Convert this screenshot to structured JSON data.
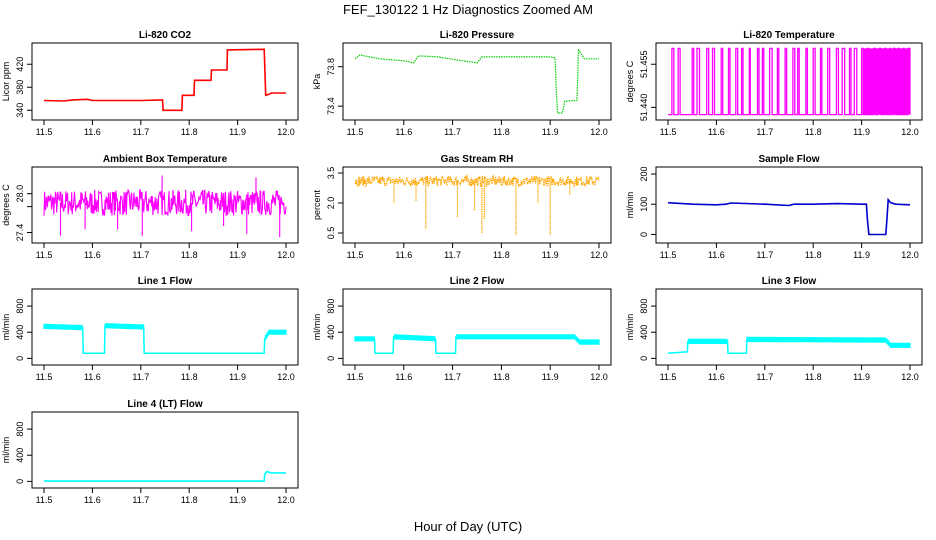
{
  "title": "FEF_130122  1 Hz Diagnostics Zoomed AM",
  "xlabel": "Hour of Day (UTC)",
  "chart_data": [
    {
      "type": "line",
      "title": "Li-820 CO2",
      "ylabel": "Licor ppm",
      "color": "#ff0000",
      "xlim": [
        11.5,
        12.0
      ],
      "ylim": [
        330,
        450
      ],
      "xticks": [
        "11.5",
        "11.6",
        "11.7",
        "11.8",
        "11.9",
        "12.0"
      ],
      "yticks": [
        340,
        380,
        420
      ],
      "ytick_labels": [
        "340",
        "380",
        "420"
      ],
      "style": "line",
      "x": [
        11.5,
        11.54,
        11.56,
        11.59,
        11.6,
        11.7,
        11.745,
        11.746,
        11.785,
        11.786,
        11.81,
        11.811,
        11.845,
        11.846,
        11.878,
        11.879,
        11.955,
        11.958,
        11.965,
        11.97,
        12.0
      ],
      "y": [
        357,
        356,
        358,
        359,
        357,
        357,
        358,
        340,
        340,
        366,
        366,
        392,
        392,
        410,
        410,
        445,
        446,
        366,
        368,
        370,
        370
      ]
    },
    {
      "type": "line",
      "title": "Li-820 Pressure",
      "ylabel": "kPa",
      "color": "#00cc00",
      "xlim": [
        11.5,
        12.0
      ],
      "ylim": [
        73.3,
        74.0
      ],
      "xticks": [
        "11.5",
        "11.6",
        "11.7",
        "11.8",
        "11.9",
        "12.0"
      ],
      "yticks": [
        73.4,
        73.8
      ],
      "ytick_labels": [
        "73.4",
        "73.8"
      ],
      "style": "dots",
      "x": [
        11.5,
        11.51,
        11.55,
        11.6,
        11.62,
        11.63,
        11.67,
        11.72,
        11.75,
        11.76,
        11.8,
        11.85,
        11.9,
        11.91,
        11.912,
        11.915,
        11.925,
        11.93,
        11.955,
        11.958,
        11.962,
        11.97,
        12.0
      ],
      "y": [
        73.88,
        73.92,
        73.88,
        73.86,
        73.84,
        73.91,
        73.9,
        73.86,
        73.84,
        73.9,
        73.9,
        73.9,
        73.9,
        73.89,
        73.6,
        73.33,
        73.33,
        73.45,
        73.46,
        73.98,
        73.94,
        73.88,
        73.88
      ]
    },
    {
      "type": "line",
      "title": "Li-820 Temperature",
      "ylabel": "degrees C",
      "color": "#ff00ff",
      "xlim": [
        11.5,
        12.0
      ],
      "ylim": [
        51.437,
        51.461
      ],
      "xticks": [
        "11.5",
        "11.6",
        "11.7",
        "11.8",
        "11.9",
        "12.0"
      ],
      "yticks": [
        51.44,
        51.455
      ],
      "ytick_labels": [
        "51.440",
        "51.455"
      ],
      "style": "toggle",
      "low": 51.4375,
      "high": 51.4605,
      "x": [
        11.5,
        11.508,
        11.512,
        11.521,
        11.525,
        11.55,
        11.553,
        11.56,
        11.565,
        11.58,
        11.584,
        11.592,
        11.596,
        11.61,
        11.613,
        11.625,
        11.628,
        11.64,
        11.644,
        11.652,
        11.655,
        11.668,
        11.67,
        11.685,
        11.688,
        11.695,
        11.698,
        11.71,
        11.715,
        11.726,
        11.729,
        11.742,
        11.745,
        11.758,
        11.762,
        11.768,
        11.771,
        11.785,
        11.788,
        11.8,
        11.804,
        11.815,
        11.818,
        11.83,
        11.834,
        11.848,
        11.852,
        11.86,
        11.865,
        11.875,
        11.878,
        11.885,
        11.89,
        11.9,
        11.903,
        11.912,
        11.915,
        11.925,
        11.928,
        11.935,
        11.94,
        11.947,
        11.95,
        11.958,
        11.96,
        11.966,
        11.97,
        11.975,
        11.978,
        11.985,
        11.988,
        11.995,
        12.0
      ]
    },
    {
      "type": "line",
      "title": "Ambient Box Temperature",
      "ylabel": "degrees C",
      "color": "#ff00ff",
      "xlim": [
        11.5,
        12.0
      ],
      "ylim": [
        27.3,
        28.35
      ],
      "xticks": [
        "11.5",
        "11.6",
        "11.7",
        "11.8",
        "11.9",
        "12.0"
      ],
      "yticks": [
        27.4,
        27.8,
        28.0
      ],
      "ytick_labels": [
        "27.4",
        "",
        "28.0"
      ],
      "style": "noise",
      "center": 27.86,
      "spread": 0.2,
      "spikes_x": [
        11.534,
        11.585,
        11.652,
        11.703,
        11.744,
        11.805,
        11.871,
        11.919,
        11.938,
        11.987
      ],
      "spikes_y": [
        27.35,
        27.45,
        27.45,
        27.35,
        28.28,
        27.42,
        27.5,
        27.38,
        28.25,
        27.33
      ]
    },
    {
      "type": "line",
      "title": "Gas Stream RH",
      "ylabel": "percent",
      "color": "#ffa500",
      "xlim": [
        11.5,
        12.0
      ],
      "ylim": [
        0.2,
        3.6
      ],
      "xticks": [
        "11.5",
        "11.6",
        "11.7",
        "11.8",
        "11.9",
        "12.0"
      ],
      "yticks": [
        0.5,
        2.0,
        3.5
      ],
      "ytick_labels": [
        "0.5",
        "2.0",
        "3.5"
      ],
      "style": "noise-dots",
      "center": 3.1,
      "spread": 0.25,
      "spikes_x": [
        11.58,
        11.625,
        11.645,
        11.71,
        11.745,
        11.76,
        11.765,
        11.83,
        11.875,
        11.9,
        11.94
      ],
      "spikes_y": [
        2.0,
        2.1,
        0.7,
        1.3,
        1.6,
        0.5,
        1.2,
        0.4,
        2.0,
        0.4,
        2.4
      ]
    },
    {
      "type": "line",
      "title": "Sample Flow",
      "ylabel": "ml/min",
      "color": "#0000cc",
      "xlim": [
        11.5,
        12.0
      ],
      "ylim": [
        -15,
        210
      ],
      "xticks": [
        "11.5",
        "11.6",
        "11.7",
        "11.8",
        "11.9",
        "12.0"
      ],
      "yticks": [
        0,
        100,
        200
      ],
      "ytick_labels": [
        "0",
        "100",
        "200"
      ],
      "style": "line",
      "x": [
        11.5,
        11.55,
        11.6,
        11.62,
        11.63,
        11.7,
        11.75,
        11.76,
        11.8,
        11.85,
        11.9,
        11.91,
        11.912,
        11.915,
        11.95,
        11.952,
        11.955,
        11.96,
        11.97,
        12.0
      ],
      "y": [
        105,
        100,
        98,
        100,
        104,
        100,
        96,
        100,
        100,
        102,
        100,
        100,
        50,
        0,
        0,
        45,
        115,
        105,
        100,
        98
      ]
    },
    {
      "type": "line",
      "title": "Line 1 Flow",
      "ylabel": "ml/min",
      "color": "#00ffff",
      "xlim": [
        11.5,
        12.0
      ],
      "ylim": [
        -40,
        1000
      ],
      "xticks": [
        "11.5",
        "11.6",
        "11.7",
        "11.8",
        "11.9",
        "12.0"
      ],
      "yticks": [
        0,
        400,
        800
      ],
      "ytick_labels": [
        "0",
        "400",
        "800"
      ],
      "style": "band",
      "band": 40,
      "x": [
        11.5,
        11.58,
        11.581,
        11.625,
        11.626,
        11.706,
        11.707,
        11.955,
        11.956,
        11.965,
        12.0
      ],
      "y": [
        490,
        470,
        80,
        80,
        500,
        480,
        80,
        80,
        300,
        400,
        400
      ]
    },
    {
      "type": "line",
      "title": "Line 2 Flow",
      "ylabel": "ml/min",
      "color": "#00ffff",
      "xlim": [
        11.5,
        12.0
      ],
      "ylim": [
        -40,
        1000
      ],
      "xticks": [
        "11.5",
        "11.6",
        "11.7",
        "11.8",
        "11.9",
        "12.0"
      ],
      "yticks": [
        0,
        400,
        800
      ],
      "ytick_labels": [
        "0",
        "400",
        "800"
      ],
      "style": "band",
      "band": 40,
      "x": [
        11.5,
        11.54,
        11.541,
        11.578,
        11.579,
        11.665,
        11.666,
        11.706,
        11.707,
        11.95,
        11.96,
        12.0
      ],
      "y": [
        300,
        300,
        80,
        80,
        330,
        300,
        80,
        80,
        330,
        330,
        250,
        250
      ]
    },
    {
      "type": "line",
      "title": "Line 3 Flow",
      "ylabel": "ml/min",
      "color": "#00ffff",
      "xlim": [
        11.5,
        12.0
      ],
      "ylim": [
        -40,
        1000
      ],
      "xticks": [
        "11.5",
        "11.6",
        "11.7",
        "11.8",
        "11.9",
        "12.0"
      ],
      "yticks": [
        0,
        400,
        800
      ],
      "ytick_labels": [
        "0",
        "400",
        "800"
      ],
      "style": "band",
      "band": 40,
      "x": [
        11.5,
        11.54,
        11.541,
        11.623,
        11.624,
        11.662,
        11.663,
        11.95,
        11.96,
        12.0
      ],
      "y": [
        80,
        100,
        260,
        260,
        80,
        80,
        290,
        280,
        200,
        200
      ]
    },
    {
      "type": "line",
      "title": "Line 4 (LT) Flow",
      "ylabel": "ml/min",
      "color": "#00ffff",
      "xlim": [
        11.5,
        12.0
      ],
      "ylim": [
        -40,
        1000
      ],
      "xticks": [
        "11.5",
        "11.6",
        "11.7",
        "11.8",
        "11.9",
        "12.0"
      ],
      "yticks": [
        0,
        400,
        800
      ],
      "ytick_labels": [
        "0",
        "400",
        "800"
      ],
      "style": "line",
      "x": [
        11.5,
        11.955,
        11.956,
        11.96,
        11.97,
        12.0
      ],
      "y": [
        5,
        5,
        110,
        150,
        130,
        130
      ]
    }
  ]
}
